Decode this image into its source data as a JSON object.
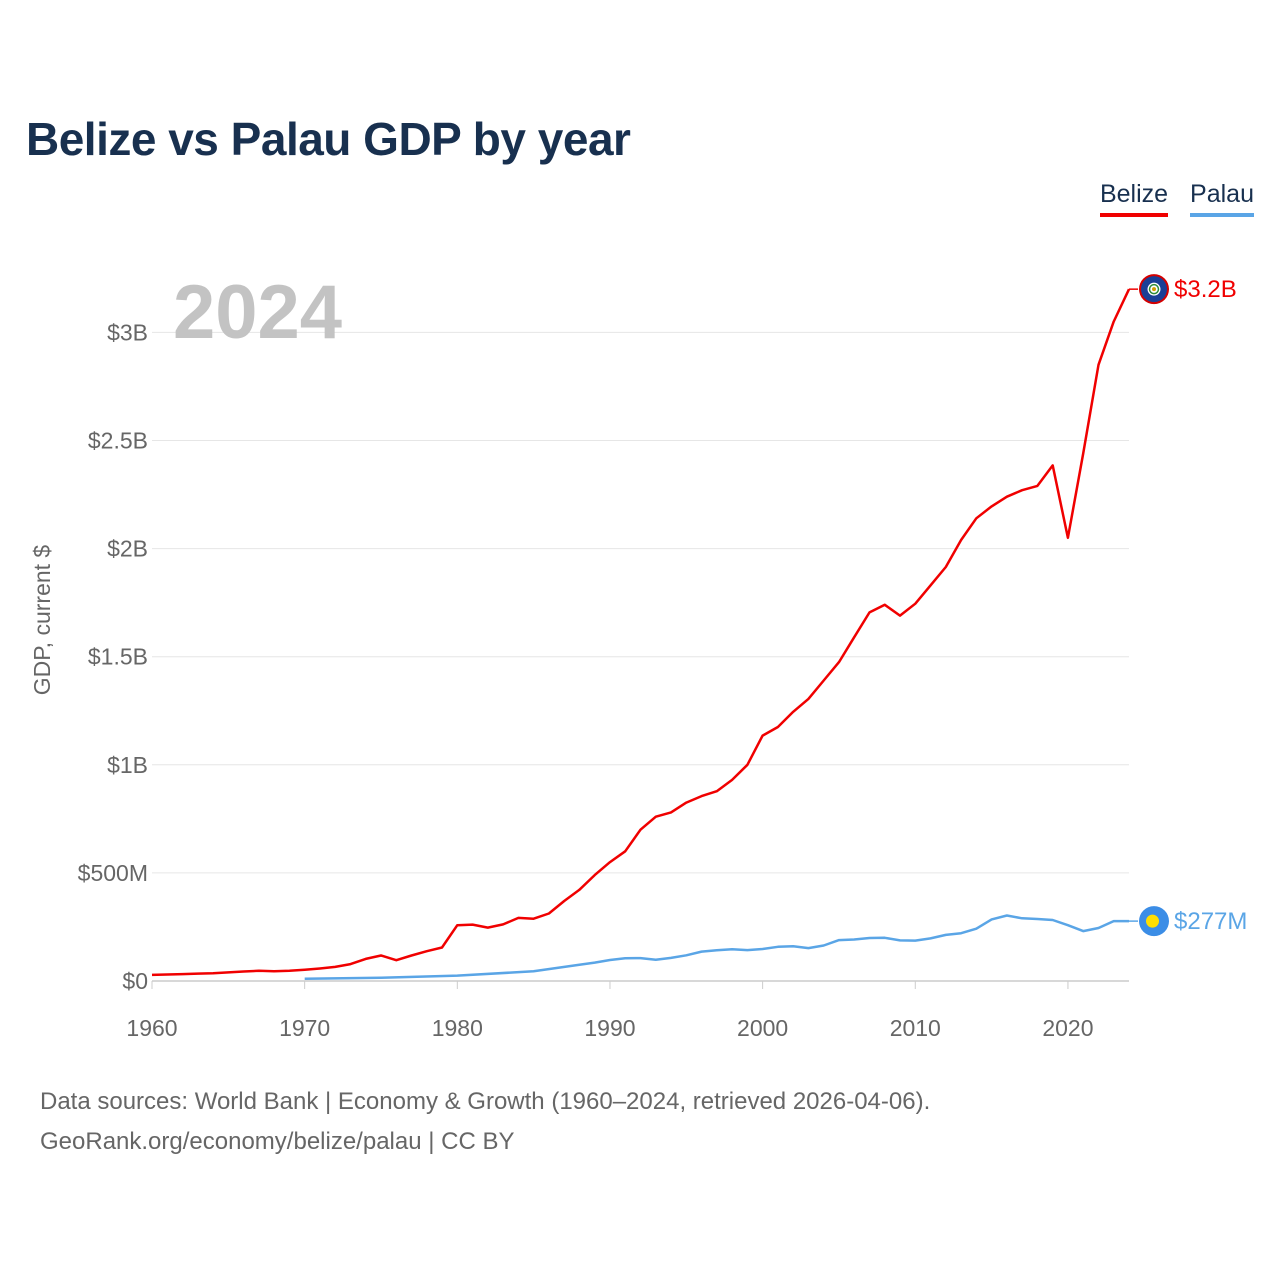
{
  "title": "Belize vs Palau GDP by year",
  "legend": [
    {
      "name": "Belize",
      "color": "#f00000"
    },
    {
      "name": "Palau",
      "color": "#5aa5e6"
    }
  ],
  "source": {
    "line1": "Data sources: World Bank | Economy & Growth (1960–2024, retrieved 2026-04-06).",
    "line2": "GeoRank.org/economy/belize/palau | CC BY"
  },
  "chart_data": {
    "type": "line",
    "title": "Belize vs Palau GDP by year",
    "watermark_year": "2024",
    "ylabel": "GDP, current $",
    "xlim": [
      1960,
      2024
    ],
    "ylim": [
      0,
      3300000000
    ],
    "x_ticks": [
      {
        "value": 1960,
        "label": "1960"
      },
      {
        "value": 1970,
        "label": "1970"
      },
      {
        "value": 1980,
        "label": "1980"
      },
      {
        "value": 1990,
        "label": "1990"
      },
      {
        "value": 2000,
        "label": "2000"
      },
      {
        "value": 2010,
        "label": "2010"
      },
      {
        "value": 2020,
        "label": "2020"
      }
    ],
    "y_ticks": [
      {
        "value": 0,
        "label": "$0"
      },
      {
        "value": 500000000,
        "label": "$500M"
      },
      {
        "value": 1000000000,
        "label": "$1B"
      },
      {
        "value": 1500000000,
        "label": "$1.5B"
      },
      {
        "value": 2000000000,
        "label": "$2B"
      },
      {
        "value": 2500000000,
        "label": "$2.5B"
      },
      {
        "value": 3000000000,
        "label": "$3B"
      }
    ],
    "series": [
      {
        "name": "Belize",
        "color": "#f00000",
        "end_label": "$3.2B",
        "icon": "belize-flag-icon",
        "x": [
          1960,
          1961,
          1962,
          1963,
          1964,
          1965,
          1966,
          1967,
          1968,
          1969,
          1970,
          1971,
          1972,
          1973,
          1974,
          1975,
          1976,
          1977,
          1978,
          1979,
          1980,
          1981,
          1982,
          1983,
          1984,
          1985,
          1986,
          1987,
          1988,
          1989,
          1990,
          1991,
          1992,
          1993,
          1994,
          1995,
          1996,
          1997,
          1998,
          1999,
          2000,
          2001,
          2002,
          2003,
          2004,
          2005,
          2006,
          2007,
          2008,
          2009,
          2010,
          2011,
          2012,
          2013,
          2014,
          2015,
          2016,
          2017,
          2018,
          2019,
          2020,
          2021,
          2022,
          2023,
          2024
        ],
        "values": [
          28000000,
          30000000,
          32000000,
          34000000,
          36000000,
          40000000,
          44000000,
          47000000,
          45000000,
          47000000,
          52000000,
          58000000,
          65000000,
          78000000,
          102000000,
          118000000,
          96000000,
          118000000,
          138000000,
          155000000,
          258000000,
          261000000,
          247000000,
          262000000,
          292000000,
          288000000,
          312000000,
          370000000,
          422000000,
          490000000,
          550000000,
          600000000,
          700000000,
          760000000,
          780000000,
          825000000,
          855000000,
          878000000,
          930000000,
          1000000000,
          1135000000,
          1175000000,
          1245000000,
          1305000000,
          1390000000,
          1475000000,
          1590000000,
          1705000000,
          1740000000,
          1690000000,
          1745000000,
          1830000000,
          1915000000,
          2040000000,
          2140000000,
          2195000000,
          2240000000,
          2270000000,
          2290000000,
          2385000000,
          2050000000,
          2440000000,
          2850000000,
          3050000000,
          3200000000
        ]
      },
      {
        "name": "Palau",
        "color": "#5aa5e6",
        "end_label": "$277M",
        "icon": "palau-flag-icon",
        "x": [
          1970,
          1975,
          1980,
          1985,
          1988,
          1989,
          1990,
          1991,
          1992,
          1993,
          1994,
          1995,
          1996,
          1997,
          1998,
          1999,
          2000,
          2001,
          2002,
          2003,
          2004,
          2005,
          2006,
          2007,
          2008,
          2009,
          2010,
          2011,
          2012,
          2013,
          2014,
          2015,
          2016,
          2017,
          2018,
          2019,
          2020,
          2021,
          2022,
          2023,
          2024
        ],
        "values": [
          10000000,
          15000000,
          25000000,
          45000000,
          75000000,
          85000000,
          97000000,
          105000000,
          106000000,
          98000000,
          107000000,
          119000000,
          136000000,
          142000000,
          147000000,
          143000000,
          148000000,
          158000000,
          161000000,
          152000000,
          164000000,
          189000000,
          192000000,
          199000000,
          200000000,
          188000000,
          187000000,
          197000000,
          213000000,
          221000000,
          242000000,
          285000000,
          303000000,
          290000000,
          287000000,
          282000000,
          258000000,
          231000000,
          245000000,
          277000000,
          277000000
        ]
      }
    ]
  }
}
